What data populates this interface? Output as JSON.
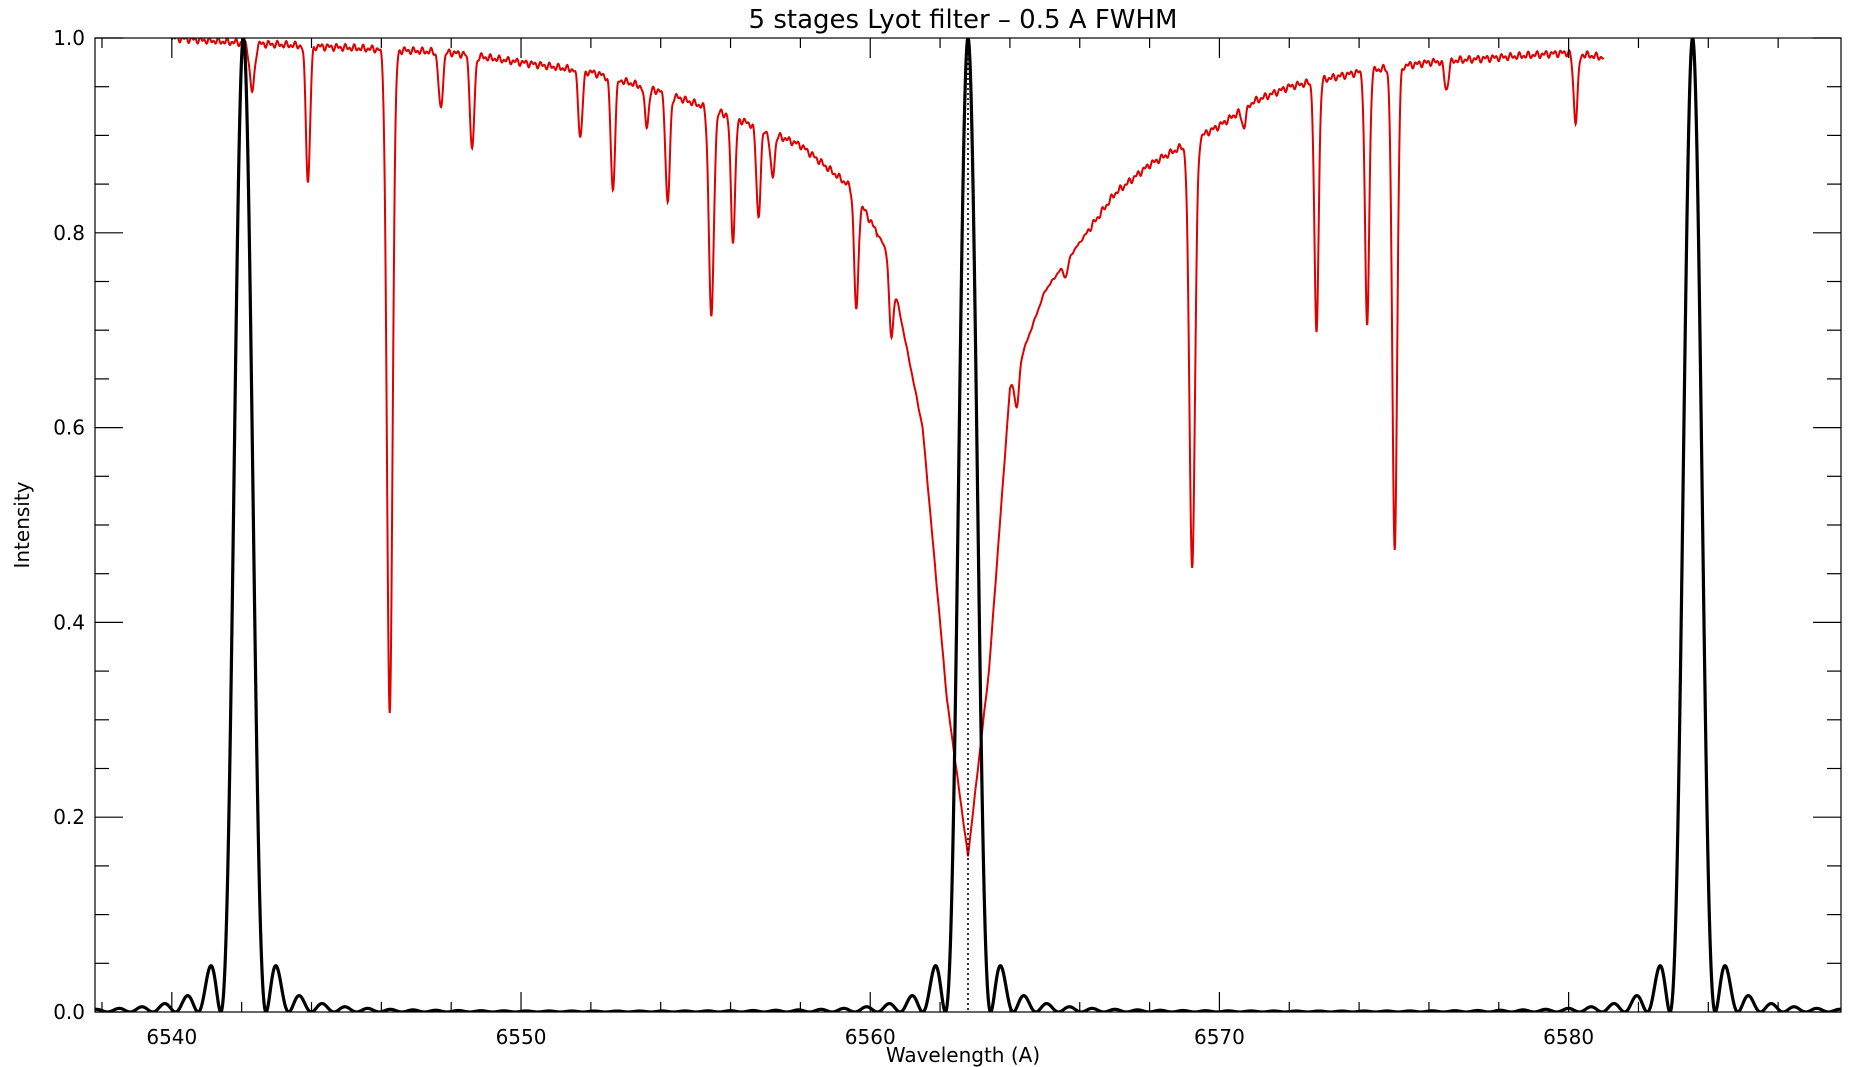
{
  "chart_data": {
    "type": "line",
    "title": "5 stages Lyot filter – 0.5 A FWHM",
    "xlabel": "Wavelength (A)",
    "ylabel": "Intensity",
    "xlim": [
      6537.8,
      6587.8
    ],
    "ylim": [
      0.0,
      1.0
    ],
    "x_ticks": [
      6540,
      6550,
      6560,
      6570,
      6580
    ],
    "y_ticks": [
      "0.0",
      "0.2",
      "0.4",
      "0.6",
      "0.8",
      "1.0"
    ],
    "x_minor_step": 2,
    "y_minor_step": 0.05,
    "grid": false,
    "legend": "none",
    "reference_line": {
      "x": 6562.8,
      "style": "dotted",
      "color": "#000000"
    },
    "series": [
      {
        "kind": "solar_spectrum",
        "color": "#e00000",
        "continuum": {
          "x": [
            6540.0,
            6542.0,
            6545.0,
            6548.0,
            6550.0,
            6552.0,
            6554.0,
            6556.0,
            6558.0,
            6559.5,
            6560.5,
            6561.5,
            6562.2,
            6562.8,
            6563.4,
            6564.0,
            6565.0,
            6566.0,
            6567.0,
            6568.0,
            6569.0,
            6570.0,
            6571.0,
            6572.0,
            6574.0,
            6576.0,
            6578.0,
            6580.0,
            6581.0
          ],
          "y": [
            1.0,
            0.995,
            0.99,
            0.985,
            0.975,
            0.965,
            0.945,
            0.92,
            0.89,
            0.845,
            0.78,
            0.6,
            0.32,
            0.16,
            0.35,
            0.64,
            0.74,
            0.79,
            0.84,
            0.87,
            0.89,
            0.91,
            0.935,
            0.95,
            0.965,
            0.975,
            0.98,
            0.985,
            0.98
          ]
        },
        "absorption_lines": [
          {
            "center": 6542.3,
            "depth": 0.05,
            "width": 0.07
          },
          {
            "center": 6543.9,
            "depth": 0.14,
            "width": 0.06
          },
          {
            "center": 6546.24,
            "depth": 0.69,
            "width": 0.08
          },
          {
            "center": 6547.7,
            "depth": 0.06,
            "width": 0.06
          },
          {
            "center": 6548.6,
            "depth": 0.1,
            "width": 0.06
          },
          {
            "center": 6551.7,
            "depth": 0.07,
            "width": 0.06
          },
          {
            "center": 6552.63,
            "depth": 0.12,
            "width": 0.06
          },
          {
            "center": 6553.6,
            "depth": 0.04,
            "width": 0.06
          },
          {
            "center": 6554.2,
            "depth": 0.12,
            "width": 0.06
          },
          {
            "center": 6555.45,
            "depth": 0.23,
            "width": 0.07
          },
          {
            "center": 6556.07,
            "depth": 0.14,
            "width": 0.06
          },
          {
            "center": 6556.8,
            "depth": 0.1,
            "width": 0.06
          },
          {
            "center": 6557.2,
            "depth": 0.05,
            "width": 0.06
          },
          {
            "center": 6559.6,
            "depth": 0.14,
            "width": 0.06
          },
          {
            "center": 6560.6,
            "depth": 0.09,
            "width": 0.06
          },
          {
            "center": 6564.2,
            "depth": 0.06,
            "width": 0.06
          },
          {
            "center": 6565.6,
            "depth": 0.02,
            "width": 0.06
          },
          {
            "center": 6569.22,
            "depth": 0.49,
            "width": 0.08
          },
          {
            "center": 6570.7,
            "depth": 0.02,
            "width": 0.06
          },
          {
            "center": 6572.78,
            "depth": 0.27,
            "width": 0.06
          },
          {
            "center": 6574.23,
            "depth": 0.27,
            "width": 0.06
          },
          {
            "center": 6575.02,
            "depth": 0.51,
            "width": 0.07
          },
          {
            "center": 6576.5,
            "depth": 0.03,
            "width": 0.06
          },
          {
            "center": 6580.2,
            "depth": 0.07,
            "width": 0.06
          }
        ]
      },
      {
        "kind": "lyot_filter",
        "color": "#000000",
        "stages": 5,
        "center": 6562.8,
        "fwhm": 0.5,
        "transmission_peaks": [
          6542.05,
          6562.8,
          6583.55
        ]
      }
    ]
  }
}
